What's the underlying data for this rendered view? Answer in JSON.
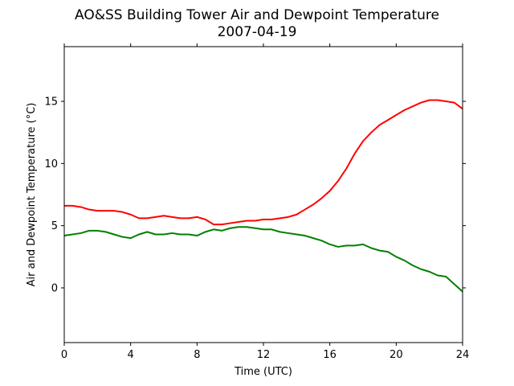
{
  "chart_data": {
    "type": "line",
    "title_line1": "AO&SS Building Tower Air and Dewpoint Temperature",
    "title_line2": "2007-04-19",
    "xlabel": "Time (UTC)",
    "ylabel": "Air and Dewpoint Temperature (°C)",
    "xlim": [
      0,
      24
    ],
    "ylim": [
      -4.4,
      19.4
    ],
    "xticks": [
      0,
      4,
      8,
      12,
      16,
      20,
      24
    ],
    "yticks": [
      0,
      5,
      10,
      15
    ],
    "grid": false,
    "series": [
      {
        "color": "#ff0000",
        "x": [
          0,
          0.5,
          1,
          1.5,
          2,
          2.5,
          3,
          3.5,
          4,
          4.5,
          5,
          5.5,
          6,
          6.5,
          7,
          7.5,
          8,
          8.5,
          9,
          9.5,
          10,
          10.5,
          11,
          11.5,
          12,
          12.5,
          13,
          13.5,
          14,
          14.5,
          15,
          15.5,
          16,
          16.5,
          17,
          17.5,
          18,
          18.5,
          19,
          19.5,
          20,
          20.5,
          21,
          21.5,
          22,
          22.5,
          23,
          23.5,
          24
        ],
        "y": [
          6.6,
          6.6,
          6.5,
          6.3,
          6.2,
          6.2,
          6.2,
          6.1,
          5.9,
          5.6,
          5.6,
          5.7,
          5.8,
          5.7,
          5.6,
          5.6,
          5.7,
          5.5,
          5.1,
          5.1,
          5.2,
          5.3,
          5.4,
          5.4,
          5.5,
          5.5,
          5.6,
          5.7,
          5.9,
          6.3,
          6.7,
          7.2,
          7.8,
          8.6,
          9.6,
          10.8,
          11.8,
          12.5,
          13.1,
          13.5,
          13.9,
          14.3,
          14.6,
          14.9,
          15.1,
          15.1,
          15.0,
          14.9,
          14.4
        ]
      },
      {
        "color": "#008000",
        "x": [
          0,
          0.5,
          1,
          1.5,
          2,
          2.5,
          3,
          3.5,
          4,
          4.5,
          5,
          5.5,
          6,
          6.5,
          7,
          7.5,
          8,
          8.5,
          9,
          9.5,
          10,
          10.5,
          11,
          11.5,
          12,
          12.5,
          13,
          13.5,
          14,
          14.5,
          15,
          15.5,
          16,
          16.5,
          17,
          17.5,
          18,
          18.5,
          19,
          19.5,
          20,
          20.5,
          21,
          21.5,
          22,
          22.5,
          23,
          23.5,
          24
        ],
        "y": [
          4.2,
          4.3,
          4.4,
          4.6,
          4.6,
          4.5,
          4.3,
          4.1,
          4.0,
          4.3,
          4.5,
          4.3,
          4.3,
          4.4,
          4.3,
          4.3,
          4.2,
          4.5,
          4.7,
          4.6,
          4.8,
          4.9,
          4.9,
          4.8,
          4.7,
          4.7,
          4.5,
          4.4,
          4.3,
          4.2,
          4.0,
          3.8,
          3.5,
          3.3,
          3.4,
          3.4,
          3.5,
          3.2,
          3.0,
          2.9,
          2.5,
          2.2,
          1.8,
          1.5,
          1.3,
          1.0,
          0.9,
          0.3,
          -0.3
        ]
      }
    ]
  }
}
